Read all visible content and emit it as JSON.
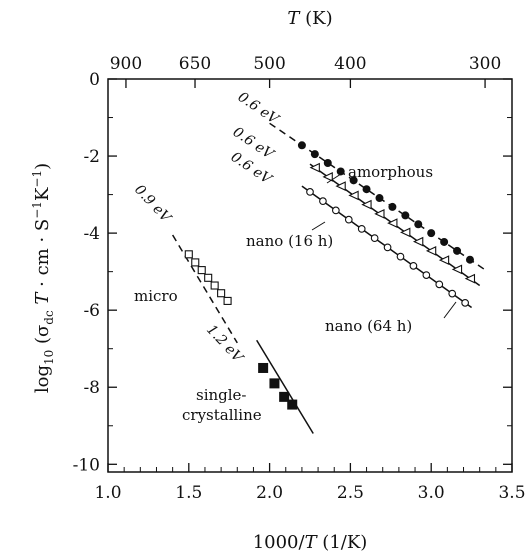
{
  "chart_data": {
    "type": "scatter",
    "xlim": [
      1.0,
      3.5
    ],
    "ylim": [
      -10.2,
      0
    ],
    "x_ticks": [
      1.0,
      1.5,
      2.0,
      2.5,
      3.0,
      3.5
    ],
    "x_tick_labels": [
      "1.0",
      "1.5",
      "2.0",
      "2.5",
      "3.0",
      "3.5"
    ],
    "y_ticks": [
      0,
      -2,
      -4,
      -6,
      -8,
      -10
    ],
    "y_tick_labels": [
      "0",
      "-2",
      "-4",
      "-6",
      "-8",
      "-10"
    ],
    "top_ticks": [
      900,
      650,
      500,
      400,
      300
    ],
    "top_tick_labels": [
      "900",
      "650",
      "500",
      "400",
      "300"
    ],
    "xlabel": "1000/T (1/K)",
    "ylabel": "log10 (σdc T · cm · S−1K−1)",
    "top_label": "T (K)",
    "series": [
      {
        "name": "amorphous",
        "marker": "filled-circle",
        "line": "dashed",
        "x": [
          2.2,
          2.28,
          2.36,
          2.44,
          2.52,
          2.6,
          2.68,
          2.76,
          2.84,
          2.92,
          3.0,
          3.08,
          3.16,
          3.24
        ],
        "y": [
          -1.72,
          -1.95,
          -2.18,
          -2.4,
          -2.63,
          -2.86,
          -3.09,
          -3.32,
          -3.54,
          -3.77,
          -4.0,
          -4.23,
          -4.46,
          -4.69
        ],
        "fit": {
          "x": [
            2.0,
            3.35
          ],
          "y": [
            -1.15,
            -5.0
          ]
        },
        "slope_label": "0.6 eV"
      },
      {
        "name": "nano (16 h)",
        "marker": "open-triangle",
        "line": "solid",
        "x": [
          2.28,
          2.36,
          2.44,
          2.52,
          2.6,
          2.68,
          2.76,
          2.84,
          2.92,
          3.0,
          3.08,
          3.16,
          3.24
        ],
        "y": [
          -2.3,
          -2.54,
          -2.78,
          -3.02,
          -3.26,
          -3.5,
          -3.74,
          -3.98,
          -4.22,
          -4.46,
          -4.7,
          -4.94,
          -5.18
        ],
        "fit": {
          "x": [
            2.25,
            3.3
          ],
          "y": [
            -2.21,
            -5.36
          ]
        },
        "slope_label": "0.6 eV"
      },
      {
        "name": "nano (64 h)",
        "marker": "open-circle",
        "line": "solid",
        "x": [
          2.25,
          2.33,
          2.41,
          2.49,
          2.57,
          2.65,
          2.73,
          2.81,
          2.89,
          2.97,
          3.05,
          3.13,
          3.21
        ],
        "y": [
          -2.93,
          -3.17,
          -3.41,
          -3.65,
          -3.89,
          -4.13,
          -4.37,
          -4.61,
          -4.85,
          -5.09,
          -5.33,
          -5.57,
          -5.81
        ],
        "fit": {
          "x": [
            2.2,
            3.25
          ],
          "y": [
            -2.78,
            -5.93
          ]
        },
        "slope_label": "0.6 eV"
      },
      {
        "name": "micro",
        "marker": "open-square",
        "line": "dashed",
        "x": [
          1.5,
          1.54,
          1.58,
          1.62,
          1.66,
          1.7,
          1.74
        ],
        "y": [
          -4.55,
          -4.76,
          -4.96,
          -5.16,
          -5.36,
          -5.56,
          -5.76
        ],
        "fit": {
          "x": [
            1.4,
            1.8
          ],
          "y": [
            -4.05,
            -6.85
          ]
        },
        "slope_label": "0.9 eV"
      },
      {
        "name": "single-crystalline",
        "marker": "filled-square",
        "line": "solid",
        "x": [
          1.96,
          2.03,
          2.09,
          2.14
        ],
        "y": [
          -7.5,
          -7.9,
          -8.25,
          -8.45
        ],
        "fit": {
          "x": [
            1.92,
            2.27
          ],
          "y": [
            -6.78,
            -9.2
          ]
        },
        "slope_label": "1.2 eV"
      }
    ],
    "annotations": {
      "amorphous": "amorphous",
      "nano16": "nano (16 h)",
      "nano64": "nano (64 h)",
      "micro": "micro",
      "single1": "single-",
      "single2": "crystalline"
    }
  }
}
